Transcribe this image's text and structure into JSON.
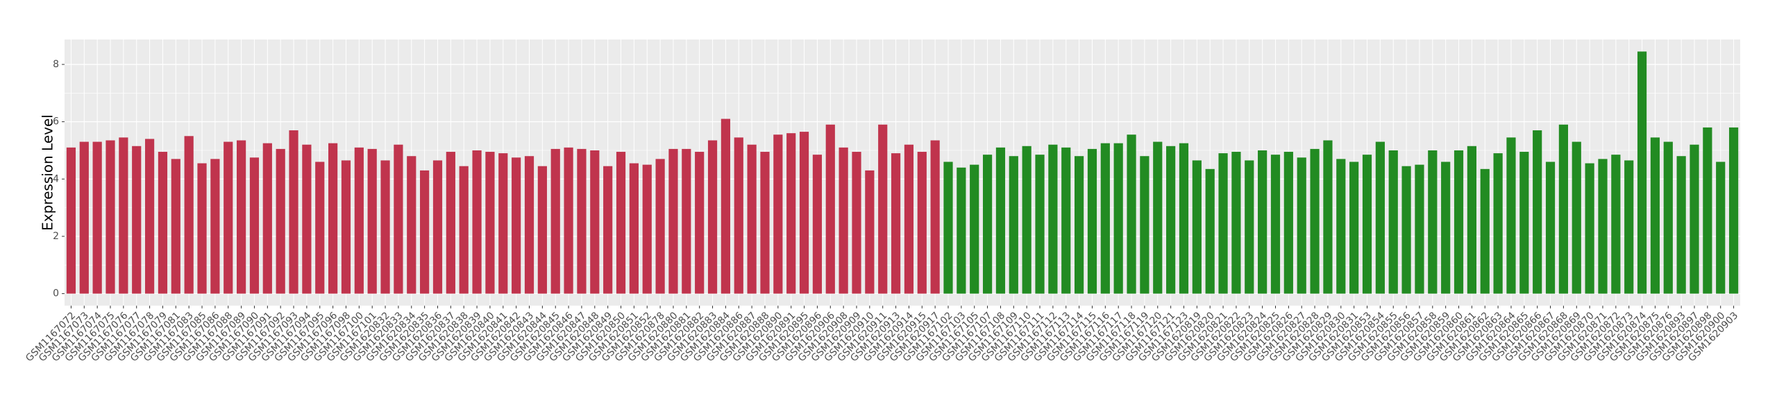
{
  "chart_data": {
    "type": "bar",
    "ylabel": "Expression Level",
    "categories": [
      "GSM1167072",
      "GSM1167073",
      "GSM1167074",
      "GSM1167075",
      "GSM1167076",
      "GSM1167077",
      "GSM1167078",
      "GSM1167079",
      "GSM1167081",
      "GSM1167083",
      "GSM1167085",
      "GSM1167086",
      "GSM1167088",
      "GSM1167089",
      "GSM1167090",
      "GSM1167091",
      "GSM1167092",
      "GSM1167093",
      "GSM1167094",
      "GSM1167095",
      "GSM1167096",
      "GSM1167098",
      "GSM1167100",
      "GSM1167101",
      "GSM1620832",
      "GSM1620833",
      "GSM1620834",
      "GSM1620835",
      "GSM1620836",
      "GSM1620837",
      "GSM1620838",
      "GSM1620839",
      "GSM1620840",
      "GSM1620841",
      "GSM1620842",
      "GSM1620843",
      "GSM1620844",
      "GSM1620845",
      "GSM1620846",
      "GSM1620847",
      "GSM1620848",
      "GSM1620849",
      "GSM1620850",
      "GSM1620851",
      "GSM1620852",
      "GSM1620878",
      "GSM1620880",
      "GSM1620881",
      "GSM1620882",
      "GSM1620883",
      "GSM1620884",
      "GSM1620886",
      "GSM1620887",
      "GSM1620888",
      "GSM1620890",
      "GSM1620891",
      "GSM1620895",
      "GSM1620896",
      "GSM1620906",
      "GSM1620908",
      "GSM1620909",
      "GSM1620910",
      "GSM1620911",
      "GSM1620913",
      "GSM1620914",
      "GSM1620915",
      "GSM1620917",
      "GSM1167102",
      "GSM1167103",
      "GSM1167105",
      "GSM1167107",
      "GSM1167108",
      "GSM1167109",
      "GSM1167110",
      "GSM1167111",
      "GSM1167112",
      "GSM1167113",
      "GSM1167114",
      "GSM1167115",
      "GSM1167116",
      "GSM1167117",
      "GSM1167118",
      "GSM1167119",
      "GSM1167120",
      "GSM1167121",
      "GSM1167123",
      "GSM1620819",
      "GSM1620820",
      "GSM1620821",
      "GSM1620822",
      "GSM1620823",
      "GSM1620824",
      "GSM1620825",
      "GSM1620826",
      "GSM1620827",
      "GSM1620828",
      "GSM1620829",
      "GSM1620830",
      "GSM1620831",
      "GSM1620853",
      "GSM1620854",
      "GSM1620855",
      "GSM1620856",
      "GSM1620857",
      "GSM1620858",
      "GSM1620859",
      "GSM1620860",
      "GSM1620861",
      "GSM1620862",
      "GSM1620863",
      "GSM1620864",
      "GSM1620865",
      "GSM1620866",
      "GSM1620867",
      "GSM1620868",
      "GSM1620869",
      "GSM1620870",
      "GSM1620871",
      "GSM1620872",
      "GSM1620873",
      "GSM1620874",
      "GSM1620875",
      "GSM1620876",
      "GSM1620893",
      "GSM1620897",
      "GSM1620898",
      "GSM1620900",
      "GSM1620903"
    ],
    "series": [
      {
        "color": "#c0344d",
        "values": [
          5.1,
          5.3,
          5.3,
          5.35,
          5.45,
          5.15,
          5.4,
          4.95,
          4.7,
          5.5,
          4.55,
          4.7,
          5.3,
          5.35,
          4.75,
          5.25,
          5.05,
          5.7,
          5.2,
          4.6,
          5.25,
          4.65,
          5.1,
          5.05,
          4.65,
          5.2,
          4.8,
          4.3,
          4.65,
          4.95,
          4.45,
          5.0,
          4.95,
          4.9,
          4.75,
          4.8,
          4.45,
          5.05,
          5.1,
          5.05,
          5.0,
          4.45,
          4.95,
          4.55,
          4.5,
          4.7,
          5.05,
          5.05,
          4.95,
          5.35,
          6.1,
          5.45,
          5.2,
          4.95,
          5.55,
          5.6,
          5.65,
          4.85,
          5.9,
          5.1,
          4.95,
          4.3,
          5.9,
          4.9,
          5.2,
          4.95,
          5.35,
          null,
          null,
          null,
          null,
          null,
          null,
          null,
          null,
          null,
          null,
          null,
          null,
          null,
          null,
          null,
          null,
          null,
          null,
          null,
          null,
          null,
          null,
          null,
          null,
          null,
          null,
          null,
          null,
          null,
          null,
          null,
          null,
          null,
          null,
          null,
          null,
          null,
          null,
          null,
          null,
          null,
          null,
          null,
          null,
          null,
          null,
          null,
          null,
          null,
          null,
          null,
          null,
          null,
          null,
          null,
          null,
          null,
          null,
          null,
          null,
          null
        ]
      },
      {
        "color": "#228b22",
        "values": [
          null,
          null,
          null,
          null,
          null,
          null,
          null,
          null,
          null,
          null,
          null,
          null,
          null,
          null,
          null,
          null,
          null,
          null,
          null,
          null,
          null,
          null,
          null,
          null,
          null,
          null,
          null,
          null,
          null,
          null,
          null,
          null,
          null,
          null,
          null,
          null,
          null,
          null,
          null,
          null,
          null,
          null,
          null,
          null,
          null,
          null,
          null,
          null,
          null,
          null,
          null,
          null,
          null,
          null,
          null,
          null,
          null,
          null,
          null,
          null,
          null,
          null,
          null,
          null,
          null,
          null,
          null,
          4.6,
          4.4,
          4.5,
          4.85,
          5.1,
          4.8,
          5.15,
          4.85,
          5.2,
          5.1,
          4.8,
          5.05,
          5.25,
          5.25,
          5.55,
          4.8,
          5.3,
          5.15,
          5.25,
          4.65,
          4.35,
          4.9,
          4.95,
          4.65,
          5.0,
          4.85,
          4.95,
          4.75,
          5.05,
          5.35,
          4.7,
          4.6,
          4.85,
          5.3,
          5.0,
          4.45,
          4.5,
          5.0,
          4.6,
          5.0,
          5.15,
          4.35,
          4.9,
          5.45,
          4.95,
          5.7,
          4.6,
          5.9,
          5.3,
          4.55,
          4.7,
          4.85,
          4.65,
          8.45,
          5.45,
          5.3,
          4.8,
          5.2,
          5.8,
          4.6,
          5.8
        ]
      }
    ],
    "ylim": [
      -0.42,
      8.87
    ],
    "yticks": [
      0,
      2,
      4,
      6,
      8
    ],
    "grid": true
  }
}
